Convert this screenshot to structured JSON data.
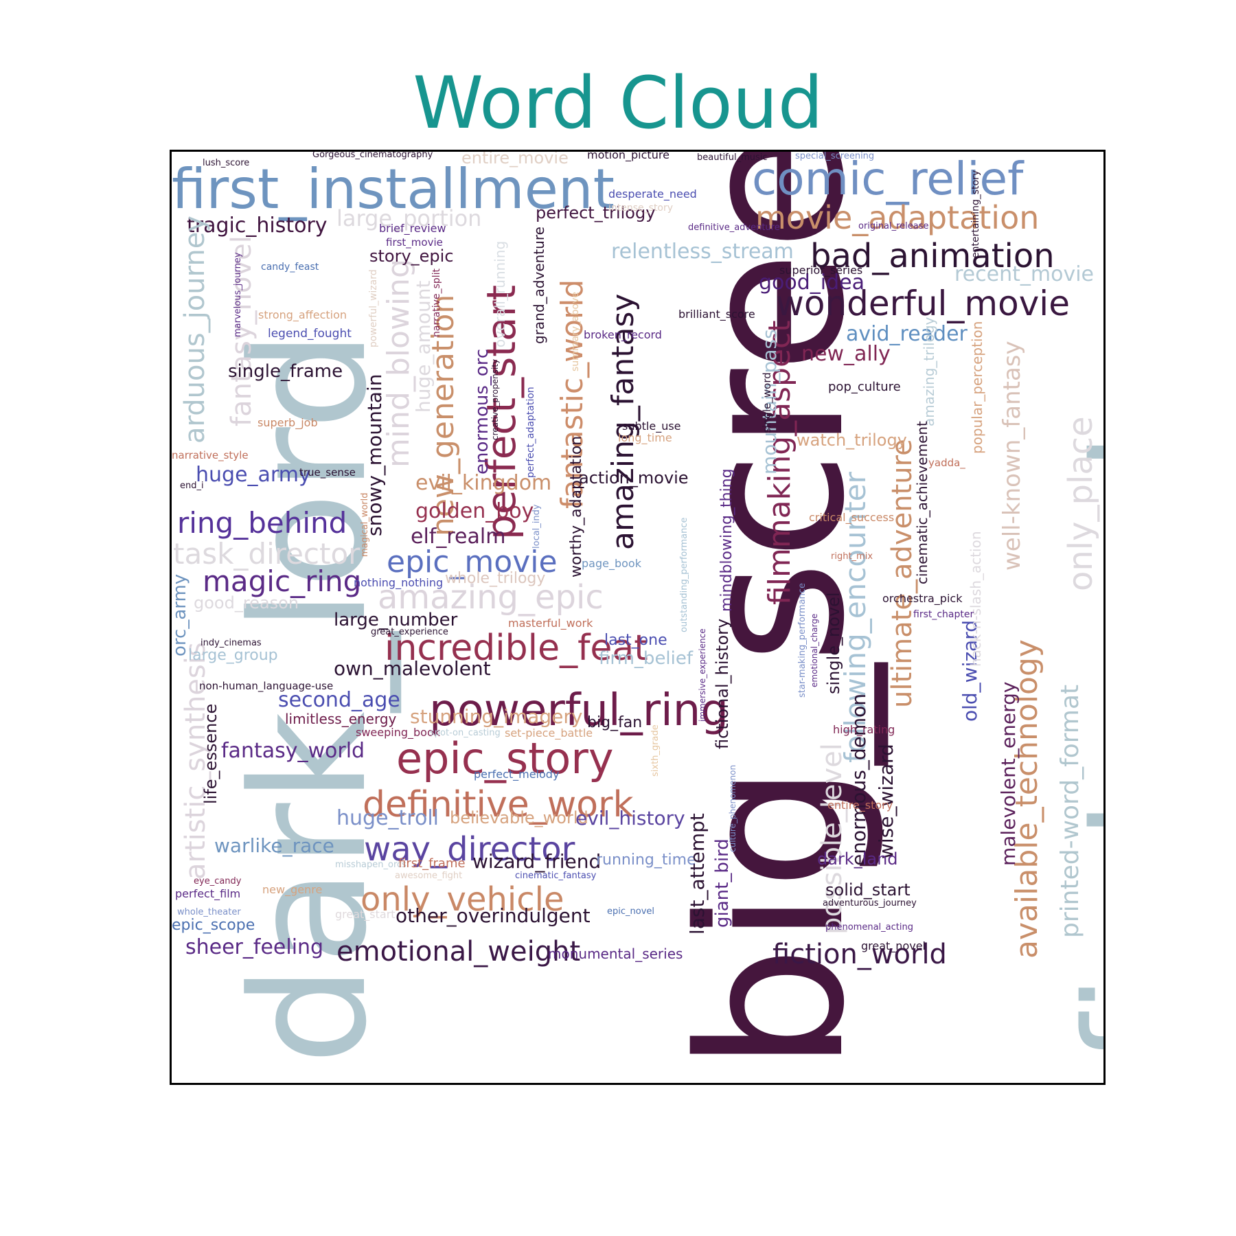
{
  "colors": {
    "title": "#17958f",
    "frame": "#000000",
    "background": "#ffffff"
  },
  "chart_data": {
    "type": "wordcloud",
    "title": "Word Cloud",
    "words": [
      {
        "text": "big_screen",
        "color": "#45163d"
      },
      {
        "text": "dark_lord",
        "color": "#b0c6ce"
      },
      {
        "text": "first_part",
        "color": "#b0c6ce"
      },
      {
        "text": "first_installment",
        "color": "#6e94bf"
      },
      {
        "text": "comic_relief",
        "color": "#6f8fc2"
      },
      {
        "text": "movie_adaptation",
        "color": "#c98f6a"
      },
      {
        "text": "bad_animation",
        "color": "#2b1232"
      },
      {
        "text": "wonderful_movie",
        "color": "#3a1740"
      },
      {
        "text": "powerful_ring",
        "color": "#6d1c4a"
      },
      {
        "text": "epic_story",
        "color": "#96304f"
      },
      {
        "text": "perfect_start",
        "color": "#8a2a50"
      },
      {
        "text": "fantastic_world",
        "color": "#cd8d6a"
      },
      {
        "text": "incredible_feat",
        "color": "#95304f"
      },
      {
        "text": "definitive_work",
        "color": "#c06f5a"
      },
      {
        "text": "way_director",
        "color": "#5a44a0"
      },
      {
        "text": "only_vehicle",
        "color": "#c98866"
      },
      {
        "text": "emotional_weight",
        "color": "#3a1746"
      },
      {
        "text": "fiction_world",
        "color": "#3a1746"
      },
      {
        "text": "amazing_epic",
        "color": "#dcd4dc"
      },
      {
        "text": "epic_movie",
        "color": "#5a6fbf"
      },
      {
        "text": "magic_ring",
        "color": "#5a2a86"
      },
      {
        "text": "ring_behind",
        "color": "#55319a"
      },
      {
        "text": "task_director",
        "color": "#ddd9de"
      },
      {
        "text": "tragic_history",
        "color": "#40143f"
      },
      {
        "text": "large_portion",
        "color": "#ddd9de"
      },
      {
        "text": "perfect_trilogy",
        "color": "#40143f"
      },
      {
        "text": "relentless_stream",
        "color": "#a6c2d4"
      },
      {
        "text": "good_idea",
        "color": "#4a1d77"
      },
      {
        "text": "recent_movie",
        "color": "#b3c9d4"
      },
      {
        "text": "avid_reader",
        "color": "#5f8fc0"
      },
      {
        "text": "new_ally",
        "color": "#802654"
      },
      {
        "text": "amazing_fantasy",
        "color": "#2b1232"
      },
      {
        "text": "filmmaking_aspect",
        "color": "#802654"
      },
      {
        "text": "new_generation",
        "color": "#c98f6a"
      },
      {
        "text": "mind_blowing",
        "color": "#dcd4dc"
      },
      {
        "text": "fantasy_novel",
        "color": "#dcd4dc"
      },
      {
        "text": "arduous_journey",
        "color": "#b0c6ce"
      },
      {
        "text": "artistic_synthesis",
        "color": "#dcd4dc"
      },
      {
        "text": "following_encounter",
        "color": "#a6c2d4"
      },
      {
        "text": "ultimate_adventure",
        "color": "#c98f6a"
      },
      {
        "text": "available_technology",
        "color": "#c98f6a"
      },
      {
        "text": "printed-word_format",
        "color": "#b0c6ce"
      },
      {
        "text": "only_place",
        "color": "#ddd9de"
      },
      {
        "text": "well-known_fantasy",
        "color": "#d9c2b8"
      },
      {
        "text": "possible_level",
        "color": "#ddd9de"
      },
      {
        "text": "enormous_demon",
        "color": "#2b1232"
      },
      {
        "text": "wise_wizard",
        "color": "#2b1232"
      },
      {
        "text": "malevolent_energy",
        "color": "#5a1f5a"
      },
      {
        "text": "old_wizard",
        "color": "#4a4db0"
      },
      {
        "text": "mountain_pass",
        "color": "#a6c2d4"
      },
      {
        "text": "single_frame",
        "color": "#2b1232"
      },
      {
        "text": "huge_army",
        "color": "#4a4db0"
      },
      {
        "text": "golden_boy",
        "color": "#96304f"
      },
      {
        "text": "elf_realm",
        "color": "#5a1f5a"
      },
      {
        "text": "evil_kingdom",
        "color": "#c98f6a"
      },
      {
        "text": "large_number",
        "color": "#2b1232"
      },
      {
        "text": "own_malevolent",
        "color": "#2b1232"
      },
      {
        "text": "second_age",
        "color": "#4a4db0"
      },
      {
        "text": "stunning_imagery",
        "color": "#d6a27e"
      },
      {
        "text": "fantasy_world",
        "color": "#5a2a86"
      },
      {
        "text": "huge_troll",
        "color": "#7a8fc8"
      },
      {
        "text": "believable_world",
        "color": "#d6a27e"
      },
      {
        "text": "evil_history",
        "color": "#5a44a0"
      },
      {
        "text": "warlike_race",
        "color": "#6e94bf"
      },
      {
        "text": "wizard_friend",
        "color": "#2b1232"
      },
      {
        "text": "running_time",
        "color": "#7a8fc8"
      },
      {
        "text": "dark_land",
        "color": "#5a2a86"
      },
      {
        "text": "solid_start",
        "color": "#2b1232"
      },
      {
        "text": "other_overindulgent",
        "color": "#2b1232"
      },
      {
        "text": "sheer_feeling",
        "color": "#5a2a86"
      },
      {
        "text": "last_attempt",
        "color": "#2b1232"
      },
      {
        "text": "giant_bird",
        "color": "#5a2a86"
      },
      {
        "text": "big_fan",
        "color": "#2b1232"
      },
      {
        "text": "firm_belief",
        "color": "#a6c2d4"
      },
      {
        "text": "last_one",
        "color": "#4a4db0"
      },
      {
        "text": "watch_trilogy",
        "color": "#d6a27e"
      },
      {
        "text": "pop_culture",
        "color": "#2b1232"
      },
      {
        "text": "action_movie",
        "color": "#2b1232"
      },
      {
        "text": "snowy_mountain",
        "color": "#2b1232"
      },
      {
        "text": "good_reason",
        "color": "#ddd9de"
      },
      {
        "text": "orc_army",
        "color": "#6e94bf"
      },
      {
        "text": "large_group",
        "color": "#a6c2d4"
      },
      {
        "text": "epic_scope",
        "color": "#4a6fb0"
      },
      {
        "text": "life_essence",
        "color": "#2b1232"
      },
      {
        "text": "story_epic",
        "color": "#40143f"
      },
      {
        "text": "huge_amount",
        "color": "#ddd9de"
      },
      {
        "text": "enormous_orc",
        "color": "#5a2a86"
      },
      {
        "text": "whole_trilogy",
        "color": "#dcc6bd"
      },
      {
        "text": "limitless_energy",
        "color": "#6d1c4a"
      },
      {
        "text": "fictional_history",
        "color": "#2b1232"
      },
      {
        "text": "single_novel",
        "color": "#2b1232"
      },
      {
        "text": "mindblowing_thing",
        "color": "#5a2a86"
      },
      {
        "text": "worthy_adaptation",
        "color": "#2b1232"
      },
      {
        "text": "grand_adventure",
        "color": "#2b1232"
      },
      {
        "text": "overall_running",
        "color": "#d9dee3"
      },
      {
        "text": "amazing_trilogy",
        "color": "#b8ccd6"
      },
      {
        "text": "cinematic_achievement",
        "color": "#2b1232"
      },
      {
        "text": "popular_perception",
        "color": "#d6a27e"
      },
      {
        "text": "hack-n-slash_action",
        "color": "#ddd9de"
      },
      {
        "text": "entertaining_story",
        "color": "#2b1232"
      },
      {
        "text": "superior_series",
        "color": "#2b1232"
      },
      {
        "text": "brilliant_score",
        "color": "#2b1232"
      },
      {
        "text": "broken_record",
        "color": "#5a2a86"
      },
      {
        "text": "desperate_need",
        "color": "#4a4db0"
      },
      {
        "text": "intense_story",
        "color": "#e0cfc4"
      },
      {
        "text": "definitive_adventure",
        "color": "#5a2a86"
      },
      {
        "text": "original_release",
        "color": "#5a2a86"
      },
      {
        "text": "motion_picture",
        "color": "#2b1232"
      },
      {
        "text": "beautiful_music",
        "color": "#2b1232"
      },
      {
        "text": "special_screening",
        "color": "#7a8fc8"
      },
      {
        "text": "entire_movie",
        "color": "#e0cfc4"
      },
      {
        "text": "Gorgeous_cinematography",
        "color": "#2b1232"
      },
      {
        "text": "lush_score",
        "color": "#2b1232"
      },
      {
        "text": "brief_review",
        "color": "#5a2a86"
      },
      {
        "text": "first_movie",
        "color": "#5a2a86"
      },
      {
        "text": "candy_feast",
        "color": "#4a6fb0"
      },
      {
        "text": "marvelous_journey",
        "color": "#5a2a86"
      },
      {
        "text": "strong_affection",
        "color": "#d6a27e"
      },
      {
        "text": "legend_fought",
        "color": "#4a4db0"
      },
      {
        "text": "superb_job",
        "color": "#c98866"
      },
      {
        "text": "narrative_style",
        "color": "#c06f5a"
      },
      {
        "text": "end_i",
        "color": "#2b1232"
      },
      {
        "text": "true_sense",
        "color": "#2b1232"
      },
      {
        "text": "powerful_wizard",
        "color": "#e0cfc4"
      },
      {
        "text": "narrative_split",
        "color": "#802654"
      },
      {
        "text": "creative_propensity",
        "color": "#2b1232"
      },
      {
        "text": "perfect_adaptation",
        "color": "#4a4db0"
      },
      {
        "text": "summary_above",
        "color": "#e6c6a0"
      },
      {
        "text": "magical_world",
        "color": "#c98866"
      },
      {
        "text": "local_indy",
        "color": "#7a8fc8"
      },
      {
        "text": "nothing_nothing",
        "color": "#4a4db0"
      },
      {
        "text": "page_book",
        "color": "#6e94bf"
      },
      {
        "text": "outstanding_performance",
        "color": "#a6c2d4"
      },
      {
        "text": "immersive_experience",
        "color": "#5a2a86"
      },
      {
        "text": "culture_phenomenon",
        "color": "#7a8fc8"
      },
      {
        "text": "star-making_performance",
        "color": "#7a8fc8"
      },
      {
        "text": "emotional_charge",
        "color": "#5a2a86"
      },
      {
        "text": "subtle_use",
        "color": "#2b1232"
      },
      {
        "text": "long_time",
        "color": "#d6a27e"
      },
      {
        "text": "single_word",
        "color": "#2b1232"
      },
      {
        "text": "critical_success",
        "color": "#c98866"
      },
      {
        "text": "right_mix",
        "color": "#c06f5a"
      },
      {
        "text": "orchestra_pick",
        "color": "#2b1232"
      },
      {
        "text": "first_chapter",
        "color": "#5a2a86"
      },
      {
        "text": "yadda_",
        "color": "#c06f5a"
      },
      {
        "text": "masterful_work",
        "color": "#c06f5a"
      },
      {
        "text": "great_experience",
        "color": "#2b1232"
      },
      {
        "text": "indy_cinemas",
        "color": "#2b1232"
      },
      {
        "text": "non-human_language-use",
        "color": "#2b1232"
      },
      {
        "text": "sweeping_book",
        "color": "#802654"
      },
      {
        "text": "spot-on_casting",
        "color": "#b8ccd6"
      },
      {
        "text": "set-piece_battle",
        "color": "#d6a27e"
      },
      {
        "text": "perfect_melody",
        "color": "#4a6fb0"
      },
      {
        "text": "sixth_grade",
        "color": "#e6c6a0"
      },
      {
        "text": "high_rating",
        "color": "#802654"
      },
      {
        "text": "entire_story",
        "color": "#c06f5a"
      },
      {
        "text": "culture",
        "color": "#7a8fc8"
      },
      {
        "text": "phenomenon",
        "color": "#7a8fc8"
      },
      {
        "text": "misshapen_orcs",
        "color": "#b8ccd6"
      },
      {
        "text": "first_frame",
        "color": "#c06f5a"
      },
      {
        "text": "awesome_fight",
        "color": "#e0cfc4"
      },
      {
        "text": "cinematic_fantasy",
        "color": "#4a4db0"
      },
      {
        "text": "eye_candy",
        "color": "#802654"
      },
      {
        "text": "perfect_film",
        "color": "#5a2a86"
      },
      {
        "text": "new_genre",
        "color": "#d6a27e"
      },
      {
        "text": "whole_theater",
        "color": "#7a8fc8"
      },
      {
        "text": "great_start",
        "color": "#e0dadd"
      },
      {
        "text": "epic_novel",
        "color": "#4a6fb0"
      },
      {
        "text": "monumental_series",
        "color": "#5a2a86"
      },
      {
        "text": "great_novel",
        "color": "#2b1232"
      },
      {
        "text": "adventurous_journey",
        "color": "#2b1232"
      },
      {
        "text": "phenomenal_acting",
        "color": "#5a2a86"
      }
    ]
  }
}
